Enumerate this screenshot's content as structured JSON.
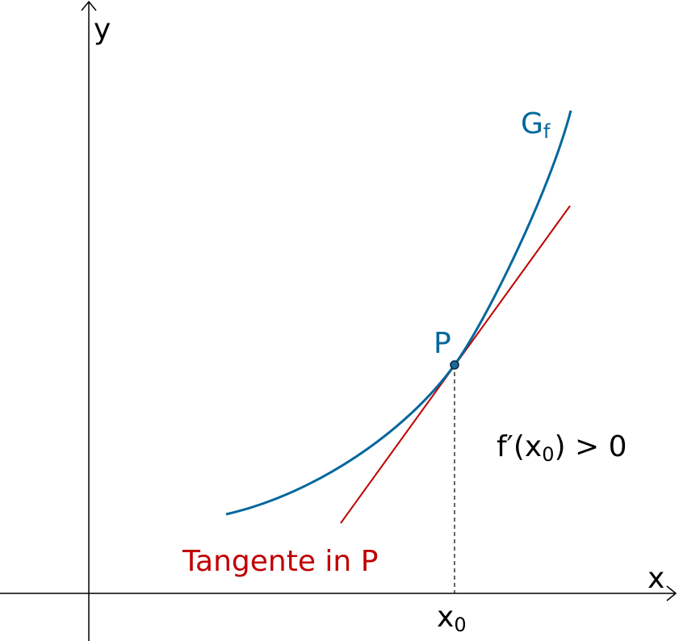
{
  "axes": {
    "y_label": "y",
    "x_label": "x"
  },
  "graph_label": {
    "main": "G",
    "sub": "f"
  },
  "point_label": "P",
  "condition": {
    "before": "f′(x",
    "sub": "0",
    "after": ") > 0"
  },
  "tangent_label": "Tangente in P",
  "x0_label": {
    "main": "x",
    "sub": "0"
  }
}
